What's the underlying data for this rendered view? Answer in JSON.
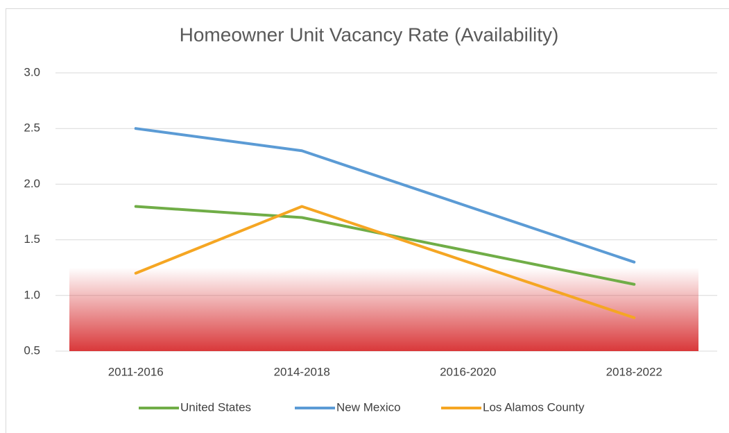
{
  "chart_data": {
    "type": "line",
    "title": "Homeowner Unit Vacancy Rate (Availability)",
    "categories": [
      "2011-2016",
      "2014-2018",
      "2016-2020",
      "2018-2022"
    ],
    "series": [
      {
        "name": "United States",
        "color": "#70ad47",
        "values": [
          1.8,
          1.7,
          1.4,
          1.1
        ]
      },
      {
        "name": "New Mexico",
        "color": "#5b9bd5",
        "values": [
          2.5,
          2.3,
          1.8,
          1.3
        ]
      },
      {
        "name": "Los Alamos County",
        "color": "#f5a623",
        "values": [
          1.2,
          1.8,
          1.3,
          0.8
        ]
      }
    ],
    "ylim": [
      0.5,
      3.0
    ],
    "yticks": [
      {
        "value": 0.5,
        "label": "0.5"
      },
      {
        "value": 1.0,
        "label": "1.0"
      },
      {
        "value": 1.5,
        "label": "1.5"
      },
      {
        "value": 2.0,
        "label": "2.0"
      },
      {
        "value": 2.5,
        "label": "2.5"
      },
      {
        "value": 3.0,
        "label": "3.0"
      }
    ],
    "shade_range": [
      0.5,
      1.25
    ],
    "grid": true,
    "legend": "bottom"
  }
}
